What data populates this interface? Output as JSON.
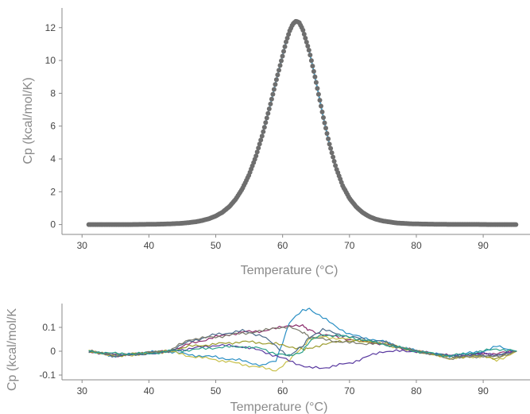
{
  "chart_data": [
    {
      "type": "scatter",
      "title": "",
      "xlabel": "Temperature (°C)",
      "ylabel": "Cp (kcal/mol/K)",
      "xlim": [
        27,
        97
      ],
      "ylim": [
        -0.6,
        13.2
      ],
      "xticks": [
        30,
        40,
        50,
        60,
        70,
        80,
        90
      ],
      "yticks": [
        0,
        2,
        4,
        6,
        8,
        10,
        12
      ],
      "xtick_labels": [
        "30",
        "40",
        "50",
        "60",
        "70",
        "80",
        "90"
      ],
      "ytick_labels": [
        "0",
        "2",
        "4",
        "6",
        "8",
        "10",
        "12"
      ],
      "grid": false,
      "peak": {
        "tm": 61.6,
        "height": 12.45
      },
      "x": [
        31,
        33,
        35,
        37,
        39,
        41,
        43,
        45,
        46,
        47,
        48,
        49,
        50,
        51,
        52,
        53,
        54,
        55,
        56,
        57,
        58,
        59,
        60,
        60.5,
        61,
        61.5,
        62,
        62.5,
        63,
        64,
        65,
        66,
        67,
        68,
        69,
        70,
        71,
        72,
        73,
        74,
        75,
        77,
        79,
        81,
        83,
        85,
        87,
        89,
        91,
        93,
        95
      ],
      "series": [
        {
          "color": "#6e6e6e",
          "values": [
            0.0,
            0.0,
            0.0,
            0.0,
            0.01,
            0.02,
            0.04,
            0.08,
            0.12,
            0.17,
            0.25,
            0.36,
            0.52,
            0.75,
            1.08,
            1.55,
            2.2,
            3.05,
            4.15,
            5.5,
            7.05,
            8.7,
            10.3,
            11.1,
            11.75,
            12.2,
            12.4,
            12.3,
            11.9,
            10.55,
            8.7,
            6.7,
            4.9,
            3.45,
            2.35,
            1.6,
            1.08,
            0.72,
            0.48,
            0.32,
            0.22,
            0.1,
            0.05,
            0.03,
            0.02,
            0.01,
            0.01,
            0.01,
            0.0,
            0.0,
            0.0
          ]
        }
      ]
    },
    {
      "type": "line",
      "title": "",
      "xlabel": "Temperature (°C)",
      "ylabel": "Cp (kcal/mol/K",
      "xlim": [
        27,
        97
      ],
      "ylim": [
        -0.12,
        0.2
      ],
      "xticks": [
        30,
        40,
        50,
        60,
        70,
        80,
        90
      ],
      "yticks": [
        -0.1,
        0,
        0.1
      ],
      "xtick_labels": [
        "30",
        "40",
        "50",
        "60",
        "70",
        "80",
        "90"
      ],
      "ytick_labels": [
        "-0.1",
        "0",
        "0.1"
      ],
      "grid": false,
      "x": [
        31,
        35,
        40,
        43,
        46,
        50,
        54,
        57,
        59,
        61,
        63,
        64,
        66,
        70,
        75,
        80,
        85,
        90,
        92,
        95
      ],
      "series": [
        {
          "color": "#8a2a6a",
          "values": [
            0.0,
            -0.02,
            -0.005,
            0.0,
            0.03,
            0.06,
            0.08,
            0.085,
            0.095,
            0.11,
            0.105,
            0.09,
            0.07,
            0.05,
            0.03,
            0.0,
            -0.02,
            -0.01,
            -0.01,
            0.0
          ]
        },
        {
          "color": "#2a8fc4",
          "values": [
            0.0,
            -0.02,
            -0.005,
            0.0,
            -0.015,
            -0.025,
            -0.04,
            -0.06,
            -0.04,
            0.12,
            0.17,
            0.18,
            0.14,
            0.07,
            0.04,
            0.0,
            -0.02,
            0.0,
            0.02,
            0.0
          ]
        },
        {
          "color": "#c8c04a",
          "values": [
            0.0,
            -0.02,
            -0.01,
            0.0,
            -0.02,
            -0.035,
            -0.055,
            -0.07,
            -0.08,
            -0.04,
            0.02,
            0.05,
            0.06,
            0.05,
            0.03,
            0.0,
            -0.03,
            -0.02,
            -0.04,
            0.0
          ]
        },
        {
          "color": "#5a3aa0",
          "values": [
            0.0,
            -0.015,
            -0.01,
            0.0,
            0.01,
            0.025,
            0.02,
            0.0,
            -0.02,
            -0.04,
            -0.06,
            -0.07,
            -0.07,
            -0.05,
            0.0,
            0.0,
            -0.02,
            -0.01,
            -0.015,
            0.0
          ]
        },
        {
          "color": "#9a9a2a",
          "values": [
            0.0,
            -0.02,
            -0.005,
            0.0,
            0.02,
            0.03,
            0.04,
            0.035,
            0.03,
            0.02,
            0.01,
            0.01,
            0.03,
            0.045,
            0.035,
            0.0,
            -0.025,
            -0.02,
            -0.03,
            0.0
          ]
        },
        {
          "color": "#4a6a8a",
          "values": [
            0.0,
            -0.02,
            -0.01,
            0.0,
            0.04,
            0.07,
            0.085,
            0.065,
            0.02,
            -0.02,
            0.02,
            0.06,
            0.09,
            0.06,
            0.04,
            0.0,
            -0.02,
            -0.015,
            -0.02,
            0.0
          ]
        },
        {
          "color": "#7a7a6a",
          "values": [
            0.0,
            -0.015,
            -0.005,
            0.0,
            0.05,
            0.06,
            0.075,
            0.085,
            0.1,
            0.1,
            0.08,
            0.06,
            0.05,
            0.035,
            0.03,
            0.0,
            -0.03,
            -0.02,
            -0.025,
            0.0
          ]
        },
        {
          "color": "#2aa08a",
          "values": [
            0.0,
            -0.01,
            -0.01,
            0.0,
            0.005,
            0.015,
            0.02,
            0.01,
            -0.01,
            -0.02,
            0.0,
            0.04,
            0.07,
            0.06,
            0.03,
            0.0,
            -0.02,
            0.0,
            0.01,
            0.0
          ]
        }
      ]
    }
  ]
}
